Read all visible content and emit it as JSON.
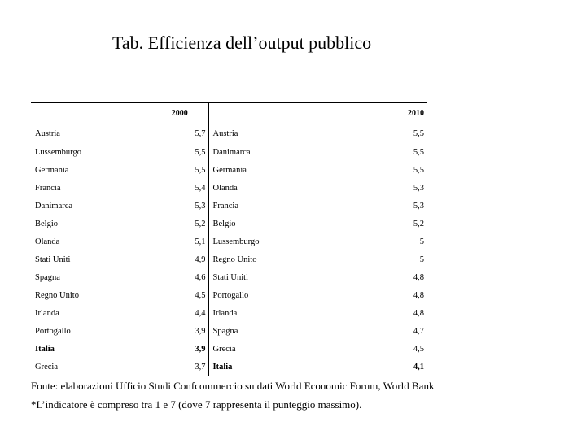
{
  "title": "Tab. Efficienza dell’output pubblico",
  "table": {
    "headers": {
      "year1": "2000",
      "year2": "2010"
    },
    "rows": [
      {
        "country1": "Austria",
        "value1": "5,7",
        "country2": "Austria",
        "value2": "5,5"
      },
      {
        "country1": "Lussemburgo",
        "value1": "5,5",
        "country2": "Danimarca",
        "value2": "5,5"
      },
      {
        "country1": "Germania",
        "value1": "5,5",
        "country2": "Germania",
        "value2": "5,5"
      },
      {
        "country1": "Francia",
        "value1": "5,4",
        "country2": "Olanda",
        "value2": "5,3"
      },
      {
        "country1": "Danimarca",
        "value1": "5,3",
        "country2": "Francia",
        "value2": "5,3"
      },
      {
        "country1": "Belgio",
        "value1": "5,2",
        "country2": "Belgio",
        "value2": "5,2"
      },
      {
        "country1": "Olanda",
        "value1": "5,1",
        "country2": "Lussemburgo",
        "value2": "5"
      },
      {
        "country1": "Stati Uniti",
        "value1": "4,9",
        "country2": "Regno Unito",
        "value2": "5"
      },
      {
        "country1": "Spagna",
        "value1": "4,6",
        "country2": "Stati Uniti",
        "value2": "4,8"
      },
      {
        "country1": "Regno Unito",
        "value1": "4,5",
        "country2": "Portogallo",
        "value2": "4,8"
      },
      {
        "country1": "Irlanda",
        "value1": "4,4",
        "country2": "Irlanda",
        "value2": "4,8"
      },
      {
        "country1": "Portogallo",
        "value1": "3,9",
        "country2": "Spagna",
        "value2": "4,7"
      },
      {
        "country1": "Italia",
        "value1": "3,9",
        "country2": "Grecia",
        "value2": "4,5",
        "bold1": true
      },
      {
        "country1": "Grecia",
        "value1": "3,7",
        "country2": "Italia",
        "value2": "4,1",
        "bold2": true
      }
    ]
  },
  "source": "Fonte: elaborazioni Ufficio Studi Confcommercio su dati World Economic Forum, World Bank",
  "footnote": "*L’indicatore è compreso tra 1 e 7 (dove 7 rappresenta il punteggio massimo)."
}
